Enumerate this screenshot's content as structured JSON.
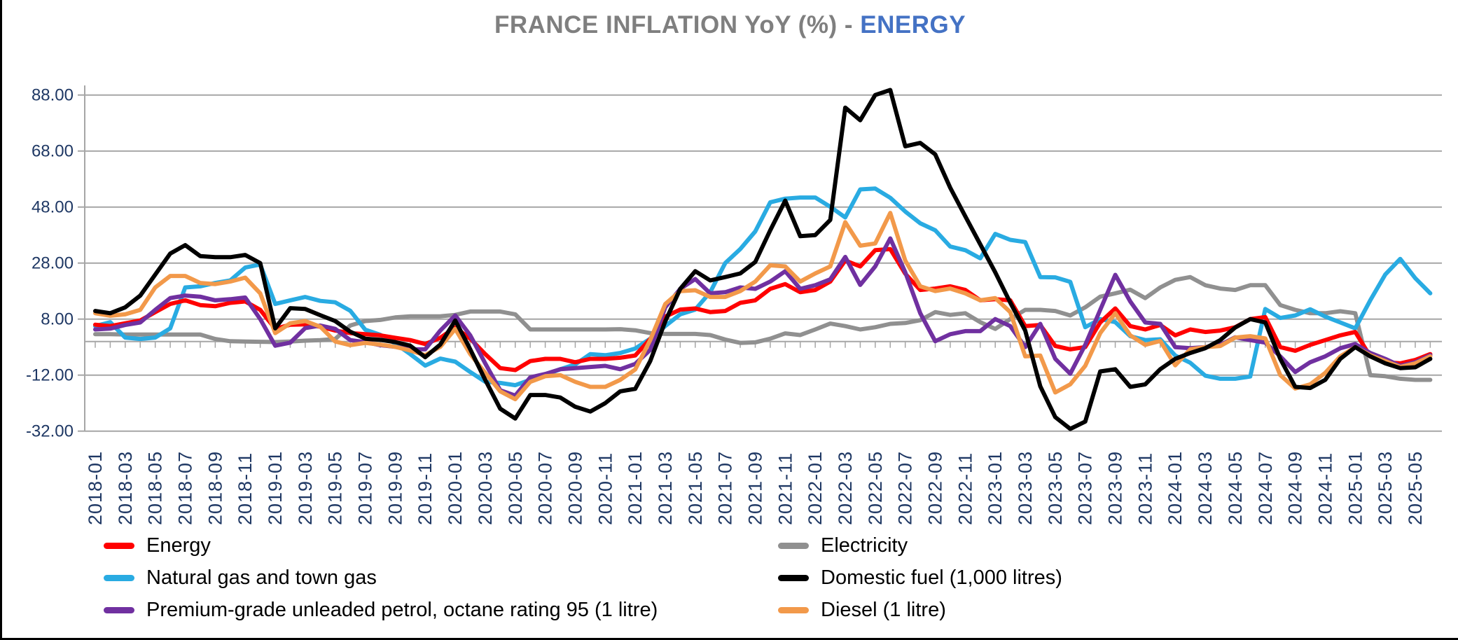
{
  "title": {
    "main": "FRANCE INFLATION YoY (%) -",
    "highlight": "ENERGY"
  },
  "colors": {
    "title_gray": "#7F7F7F",
    "title_blue": "#4472C4",
    "axis_text": "#1F3864",
    "grid_line": "#A6A6A6",
    "energy": "#FF0000",
    "natural_gas": "#29ABE2",
    "petrol": "#7030A0",
    "electricity": "#909090",
    "domestic_fuel": "#000000",
    "diesel": "#F2994A"
  },
  "chart_data": {
    "type": "line",
    "title": "FRANCE INFLATION YoY (%) - ENERGY",
    "xlabel": "",
    "ylabel": "",
    "ylim": [
      -32,
      88
    ],
    "grid": true,
    "legend_position": "bottom",
    "y_ticks": [
      88,
      68,
      48,
      28,
      8,
      -12,
      -32
    ],
    "y_tick_labels": [
      "88.00",
      "68.00",
      "48.00",
      "28.00",
      "8.00",
      "-12.00",
      "-32.00"
    ],
    "x_label_every": 2,
    "x": [
      "2018-01",
      "2018-02",
      "2018-03",
      "2018-04",
      "2018-05",
      "2018-06",
      "2018-07",
      "2018-08",
      "2018-09",
      "2018-10",
      "2018-11",
      "2018-12",
      "2019-01",
      "2019-02",
      "2019-03",
      "2019-04",
      "2019-05",
      "2019-06",
      "2019-07",
      "2019-08",
      "2019-09",
      "2019-10",
      "2019-11",
      "2019-12",
      "2020-01",
      "2020-02",
      "2020-03",
      "2020-04",
      "2020-05",
      "2020-06",
      "2020-07",
      "2020-08",
      "2020-09",
      "2020-10",
      "2020-11",
      "2020-12",
      "2021-01",
      "2021-02",
      "2021-03",
      "2021-04",
      "2021-05",
      "2021-06",
      "2021-07",
      "2021-08",
      "2021-09",
      "2021-10",
      "2021-11",
      "2021-12",
      "2022-01",
      "2022-02",
      "2022-03",
      "2022-04",
      "2022-05",
      "2022-06",
      "2022-07",
      "2022-08",
      "2022-09",
      "2022-10",
      "2022-11",
      "2022-12",
      "2023-01",
      "2023-02",
      "2023-03",
      "2023-04",
      "2023-05",
      "2023-06",
      "2023-07",
      "2023-08",
      "2023-09",
      "2023-10",
      "2023-11",
      "2023-12",
      "2024-01",
      "2024-02",
      "2024-03",
      "2024-04",
      "2024-05",
      "2024-06",
      "2024-07",
      "2024-08",
      "2024-09",
      "2024-10",
      "2024-11",
      "2024-12",
      "2025-01",
      "2025-02",
      "2025-03",
      "2025-04",
      "2025-05",
      "2025-06"
    ],
    "series": [
      {
        "name": "Energy",
        "color_key": "energy",
        "values": [
          6.0,
          5.5,
          6.5,
          7.5,
          10.5,
          13.4,
          14.7,
          13.0,
          12.6,
          13.8,
          14.3,
          11.3,
          4.5,
          6.0,
          6.1,
          5.3,
          3.9,
          3.0,
          2.6,
          2.2,
          1.3,
          0.5,
          -0.9,
          1.3,
          5.0,
          1.0,
          -4.5,
          -9.5,
          -10.2,
          -7.0,
          -6.2,
          -6.2,
          -7.4,
          -6.2,
          -6.2,
          -5.8,
          -5.0,
          0.9,
          8.9,
          11.4,
          11.8,
          10.5,
          10.9,
          13.8,
          14.7,
          18.8,
          20.5,
          17.6,
          18.4,
          21.4,
          28.9,
          26.8,
          32.6,
          33.0,
          24.2,
          18.4,
          18.9,
          19.7,
          18.4,
          14.7,
          15.1,
          14.7,
          5.5,
          5.9,
          -1.6,
          -2.8,
          -2.0,
          6.8,
          11.8,
          5.5,
          4.3,
          5.9,
          2.2,
          4.3,
          3.4,
          3.9,
          5.1,
          8.0,
          8.7,
          -2.0,
          -3.3,
          -1.2,
          0.5,
          2.2,
          3.4,
          -5.3,
          -7.4,
          -7.8,
          -6.6,
          -4.5
        ]
      },
      {
        "name": "Natural gas and town gas",
        "color_key": "natural_gas",
        "values": [
          5.5,
          6.9,
          1.4,
          0.9,
          1.4,
          4.7,
          19.3,
          19.7,
          20.9,
          21.8,
          26.4,
          27.5,
          13.4,
          14.7,
          15.9,
          14.5,
          14.0,
          11.0,
          4.2,
          2.4,
          -0.7,
          -4.5,
          -8.6,
          -6.1,
          -7.2,
          -10.9,
          -14.4,
          -14.8,
          -15.6,
          -13.7,
          -12.0,
          -9.9,
          -8.2,
          -4.5,
          -4.9,
          -4.1,
          -2.5,
          1.0,
          5.5,
          9.7,
          11.4,
          17.6,
          28.0,
          33.0,
          39.3,
          49.7,
          51.0,
          51.4,
          51.4,
          48.1,
          44.3,
          54.3,
          54.6,
          51.3,
          46.4,
          42.2,
          39.7,
          33.9,
          32.6,
          29.7,
          38.4,
          36.3,
          35.5,
          23.0,
          22.9,
          21.3,
          5.1,
          8.0,
          6.9,
          1.9,
          0.5,
          0.8,
          -5.0,
          -7.6,
          -12.2,
          -13.3,
          -13.3,
          -12.5,
          11.6,
          8.4,
          9.3,
          11.5,
          8.9,
          6.8,
          4.7,
          14.7,
          23.9,
          29.5,
          22.6,
          17.2
        ]
      },
      {
        "name": "Premium-grade unleaded petrol, octane rating 95 (1 litre)",
        "color_key": "petrol",
        "values": [
          4.3,
          4.6,
          5.9,
          6.8,
          11.3,
          15.5,
          16.4,
          16.0,
          14.7,
          15.1,
          15.7,
          8.0,
          -1.5,
          -0.4,
          4.8,
          5.7,
          4.5,
          0.5,
          -0.2,
          -1.3,
          -1.9,
          -2.8,
          -2.8,
          3.9,
          9.3,
          2.2,
          -7.8,
          -17.4,
          -19.3,
          -12.8,
          -11.6,
          -9.9,
          -9.5,
          -9.1,
          -8.7,
          -9.9,
          -8.0,
          -3.0,
          12.2,
          18.8,
          22.3,
          17.2,
          17.6,
          19.3,
          18.8,
          21.4,
          25.1,
          18.8,
          20.1,
          22.2,
          30.2,
          20.2,
          26.8,
          36.8,
          24.7,
          10.1,
          0.1,
          2.6,
          3.7,
          3.7,
          8.0,
          5.5,
          -2.0,
          6.3,
          -6.2,
          -11.5,
          -1.2,
          11.3,
          23.8,
          14.3,
          6.8,
          6.3,
          -2.0,
          -2.4,
          -2.0,
          -1.2,
          1.5,
          0.5,
          -0.4,
          -5.3,
          -10.9,
          -7.4,
          -5.3,
          -2.4,
          -0.9,
          -4.1,
          -6.2,
          -8.7,
          -7.4,
          -4.9
        ]
      },
      {
        "name": "Electricity",
        "color_key": "electricity",
        "values": [
          2.6,
          2.6,
          2.5,
          2.5,
          2.5,
          2.5,
          2.5,
          2.5,
          0.9,
          0.1,
          0.0,
          -0.1,
          -0.2,
          0.0,
          0.3,
          0.5,
          0.9,
          5.7,
          7.3,
          7.7,
          8.6,
          9.0,
          9.0,
          9.0,
          9.5,
          10.7,
          10.7,
          10.7,
          9.7,
          4.3,
          4.3,
          4.3,
          4.3,
          4.3,
          4.3,
          4.4,
          4.0,
          3.0,
          2.7,
          2.7,
          2.7,
          2.3,
          0.7,
          -0.5,
          -0.3,
          1.0,
          2.9,
          2.3,
          4.3,
          6.4,
          5.5,
          4.3,
          5.1,
          6.3,
          6.6,
          7.6,
          10.5,
          9.5,
          10.1,
          6.9,
          4.5,
          8.0,
          11.3,
          11.3,
          10.9,
          9.3,
          12.2,
          16.0,
          17.2,
          18.5,
          15.5,
          19.3,
          22.0,
          23.0,
          20.1,
          18.9,
          18.4,
          20.1,
          20.1,
          13.0,
          11.3,
          10.1,
          10.1,
          10.8,
          10.1,
          -12.0,
          -12.4,
          -13.3,
          -13.7,
          -13.7
        ]
      },
      {
        "name": "Domestic fuel (1,000 litres)",
        "color_key": "domestic_fuel",
        "values": [
          10.9,
          10.1,
          12.2,
          16.4,
          23.9,
          31.4,
          34.4,
          30.5,
          30.1,
          30.1,
          30.9,
          28.0,
          4.7,
          11.9,
          11.6,
          9.4,
          7.3,
          3.5,
          1.0,
          0.6,
          -0.2,
          -1.5,
          -5.6,
          -1.1,
          7.5,
          -2.8,
          -13.7,
          -24.0,
          -27.5,
          -19.1,
          -19.1,
          -20.0,
          -23.3,
          -25.0,
          -22.0,
          -17.8,
          -16.9,
          -7.0,
          7.2,
          18.8,
          25.1,
          21.8,
          23.0,
          24.3,
          28.4,
          39.7,
          50.3,
          37.6,
          38.0,
          43.4,
          83.5,
          79.0,
          88.0,
          89.8,
          69.7,
          70.9,
          66.8,
          54.9,
          44.7,
          34.7,
          24.7,
          13.9,
          3.9,
          -16.0,
          -27.0,
          -31.2,
          -28.6,
          -10.7,
          -9.9,
          -16.2,
          -15.3,
          -9.9,
          -6.2,
          -4.1,
          -2.4,
          0.5,
          5.0,
          8.0,
          6.8,
          -6.2,
          -16.2,
          -16.6,
          -13.7,
          -6.2,
          -2.0,
          -5.3,
          -7.8,
          -9.5,
          -9.2,
          -6.2
        ]
      },
      {
        "name": "Diesel (1 litre)",
        "color_key": "diesel",
        "values": [
          10.1,
          9.2,
          9.7,
          11.3,
          19.3,
          23.4,
          23.4,
          20.9,
          20.5,
          21.4,
          22.8,
          17.2,
          3.0,
          6.5,
          7.3,
          5.3,
          0.0,
          -1.3,
          -0.5,
          -1.1,
          -1.9,
          -3.2,
          -4.9,
          -1.9,
          4.5,
          -4.5,
          -11.2,
          -17.8,
          -20.6,
          -14.4,
          -12.4,
          -12.0,
          -14.4,
          -16.2,
          -16.2,
          -13.7,
          -10.0,
          0.5,
          13.4,
          18.0,
          18.3,
          15.9,
          15.9,
          18.0,
          21.4,
          27.2,
          26.8,
          21.4,
          24.3,
          26.8,
          42.6,
          34.2,
          35.0,
          45.9,
          28.9,
          19.7,
          18.0,
          18.9,
          17.2,
          14.7,
          15.5,
          10.5,
          -5.3,
          -5.0,
          -18.2,
          -15.3,
          -8.7,
          3.0,
          10.1,
          2.2,
          -1.2,
          0.2,
          -8.5,
          -2.8,
          -2.0,
          -1.6,
          1.4,
          1.9,
          1.1,
          -12.0,
          -16.8,
          -15.3,
          -11.2,
          -5.3,
          -2.0,
          -4.9,
          -7.0,
          -9.1,
          -7.8,
          -5.3
        ]
      }
    ],
    "legend": {
      "left_column": [
        "Energy",
        "Natural gas and town gas",
        "Premium-grade unleaded petrol, octane rating 95 (1 litre)"
      ],
      "right_column": [
        "Electricity",
        "Domestic fuel (1,000 litres)",
        "Diesel (1 litre)"
      ]
    }
  }
}
